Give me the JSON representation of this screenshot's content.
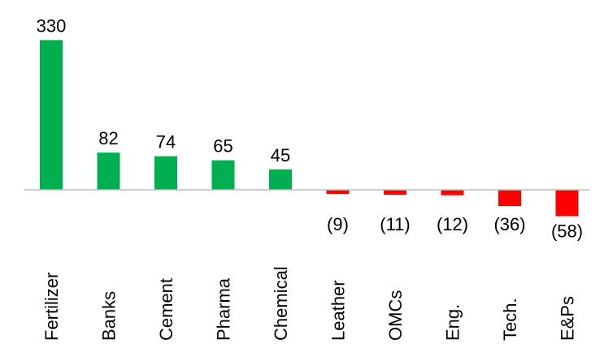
{
  "chart_data": {
    "type": "bar",
    "title": "",
    "xlabel": "",
    "ylabel": "",
    "categories": [
      "Fertilizer",
      "Banks",
      "Cement",
      "Pharma",
      "Chemical",
      "Leather",
      "OMCs",
      "Eng.",
      "Tech.",
      "E&Ps"
    ],
    "values": [
      330,
      82,
      74,
      65,
      45,
      -9,
      -11,
      -12,
      -36,
      -58
    ],
    "value_labels": [
      "330",
      "82",
      "74",
      "65",
      "45",
      "(9)",
      "(11)",
      "(12)",
      "(36)",
      "(58)"
    ],
    "ylim": [
      -58,
      330
    ],
    "grid": false,
    "legend": "none",
    "colors": {
      "positive": "#00B050",
      "negative": "#FF0000",
      "axis": "#BFBFBF"
    }
  }
}
